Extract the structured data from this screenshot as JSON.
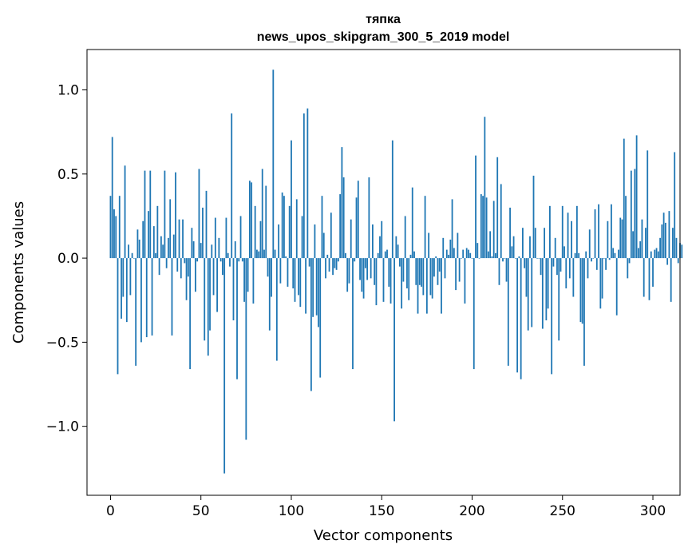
{
  "chart_data": {
    "type": "bar",
    "title_lines": [
      "тяпка",
      "news_upos_skipgram_300_5_2019 model"
    ],
    "xlabel": "Vector components",
    "ylabel": "Components values",
    "xlim": [
      -13,
      315
    ],
    "ylim": [
      -1.41,
      1.24
    ],
    "x_ticks": [
      0,
      50,
      100,
      150,
      200,
      250,
      300
    ],
    "x_tick_labels": [
      "0",
      "50",
      "100",
      "150",
      "200",
      "250",
      "300"
    ],
    "y_ticks": [
      -1.0,
      -0.5,
      0.0,
      0.5,
      1.0
    ],
    "y_tick_labels": [
      "−1.0",
      "−0.5",
      "0.0",
      "0.5",
      "1.0"
    ],
    "grid": false,
    "bar_color": "#1f77b4",
    "values": [
      0.37,
      0.72,
      0.29,
      0.25,
      -0.69,
      0.37,
      -0.36,
      -0.23,
      0.55,
      -0.38,
      0.08,
      -0.22,
      0.03,
      0.0,
      -0.64,
      0.17,
      0.11,
      -0.5,
      0.22,
      0.52,
      -0.47,
      0.28,
      0.52,
      -0.46,
      0.19,
      0.03,
      0.31,
      -0.1,
      0.13,
      0.08,
      0.52,
      -0.06,
      0.12,
      0.35,
      -0.46,
      0.14,
      0.51,
      -0.08,
      0.23,
      -0.12,
      0.23,
      -0.03,
      -0.25,
      -0.11,
      -0.66,
      0.18,
      0.1,
      -0.2,
      -0.02,
      0.53,
      0.09,
      0.3,
      -0.49,
      0.4,
      -0.58,
      -0.43,
      0.08,
      -0.22,
      0.24,
      -0.32,
      0.12,
      -0.02,
      -0.1,
      -1.28,
      0.24,
      0.03,
      -0.05,
      0.86,
      -0.37,
      0.1,
      -0.72,
      -0.02,
      0.25,
      -0.02,
      -0.26,
      -1.08,
      -0.2,
      0.46,
      0.45,
      -0.27,
      0.31,
      0.05,
      0.04,
      0.22,
      0.53,
      0.05,
      0.43,
      -0.11,
      -0.43,
      -0.23,
      1.12,
      0.05,
      -0.61,
      0.2,
      -0.15,
      0.39,
      0.37,
      0.01,
      -0.17,
      0.31,
      0.7,
      -0.18,
      -0.26,
      0.35,
      -0.22,
      -0.29,
      0.25,
      0.86,
      -0.33,
      0.89,
      -0.05,
      -0.79,
      -0.35,
      0.2,
      -0.34,
      -0.41,
      -0.71,
      0.37,
      0.15,
      -0.12,
      0.02,
      -0.08,
      0.27,
      -0.1,
      -0.06,
      -0.07,
      -0.02,
      0.38,
      0.66,
      0.48,
      0.03,
      -0.2,
      -0.15,
      0.23,
      -0.66,
      -0.02,
      0.36,
      0.46,
      -0.13,
      -0.2,
      -0.24,
      -0.06,
      -0.13,
      0.48,
      -0.12,
      0.2,
      -0.16,
      -0.28,
      0.03,
      0.13,
      0.22,
      -0.26,
      0.04,
      0.05,
      -0.17,
      -0.27,
      0.7,
      -0.97,
      0.13,
      0.08,
      -0.05,
      -0.3,
      -0.14,
      0.25,
      -0.18,
      -0.25,
      0.02,
      0.42,
      0.04,
      -0.16,
      -0.33,
      -0.16,
      -0.17,
      -0.22,
      0.37,
      -0.33,
      0.15,
      -0.22,
      -0.24,
      -0.11,
      0.01,
      -0.16,
      -0.08,
      -0.33,
      0.12,
      -0.12,
      0.05,
      0.02,
      0.11,
      0.35,
      0.06,
      -0.19,
      0.15,
      -0.14,
      0.0,
      0.05,
      -0.27,
      0.06,
      0.05,
      0.03,
      0.0,
      -0.66,
      0.61,
      0.09,
      0.0,
      0.38,
      0.37,
      0.84,
      0.36,
      0.04,
      0.16,
      0.01,
      0.34,
      0.03,
      0.6,
      -0.16,
      0.44,
      -0.02,
      0.0,
      -0.14,
      -0.64,
      0.3,
      0.07,
      0.13,
      0.0,
      -0.68,
      0.01,
      -0.72,
      0.18,
      -0.06,
      -0.23,
      -0.43,
      0.13,
      -0.41,
      0.49,
      0.18,
      0.0,
      0.0,
      -0.1,
      -0.42,
      0.18,
      -0.37,
      -0.3,
      0.31,
      -0.69,
      -0.05,
      0.12,
      -0.1,
      -0.49,
      -0.08,
      0.31,
      0.07,
      -0.18,
      0.27,
      -0.12,
      0.22,
      -0.23,
      0.03,
      0.31,
      0.03,
      -0.38,
      -0.39,
      -0.64,
      0.04,
      -0.12,
      0.17,
      -0.02,
      0.0,
      0.29,
      -0.07,
      0.32,
      -0.3,
      -0.24,
      0.0,
      -0.07,
      0.22,
      -0.01,
      0.32,
      0.06,
      0.03,
      -0.34,
      0.05,
      0.24,
      0.23,
      0.71,
      0.37,
      -0.12,
      -0.03,
      0.52,
      0.16,
      0.53,
      0.73,
      0.06,
      0.1,
      0.23,
      -0.23,
      0.18,
      0.64,
      -0.25,
      0.04,
      -0.17,
      0.05,
      0.06,
      0.04,
      0.12,
      0.2,
      0.27,
      0.21,
      -0.04,
      0.28,
      -0.26,
      0.18,
      0.63,
      0.12,
      -0.03,
      0.09,
      0.08
    ]
  }
}
